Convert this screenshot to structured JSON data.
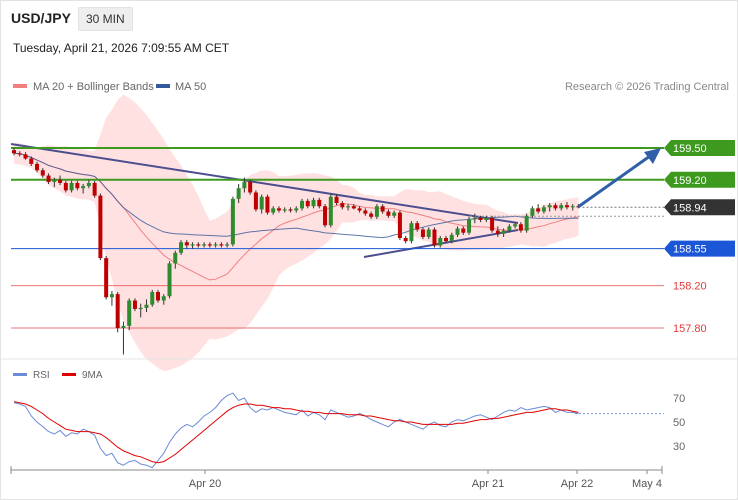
{
  "header": {
    "symbol": "USD/JPY",
    "timeframe": "30 MIN",
    "datetime": "Tuesday, April 21, 2026 7:09:55 AM CET"
  },
  "legend": {
    "ma20": "MA 20 + Bollinger Bands",
    "ma50": "MA 50",
    "rsi": "RSI",
    "rsi_ma": "9MA",
    "credit": "Research © 2026 Trading Central"
  },
  "colors": {
    "bull": "#2e8b2e",
    "bear": "#c00000",
    "ma20": "#f08080",
    "ma50": "#34589a",
    "band": "#ffdcdc",
    "resistance": "#3e9a1e",
    "pivot": "#1a56d6",
    "support": "#e23a3a",
    "current": "#333333",
    "trendline": "#4b4f8f",
    "arrow": "#2f5fa8",
    "rsi": "#6a8bd6",
    "rsi_ma": "#e00000"
  },
  "chart_data": [
    {
      "type": "candlestick",
      "x_labels": [
        "Apr 20",
        "Apr 21",
        "Apr 22",
        "May 4"
      ],
      "levels": [
        {
          "label": "159.50",
          "value": 159.5,
          "kind": "resistance"
        },
        {
          "label": "159.20",
          "value": 159.2,
          "kind": "resistance"
        },
        {
          "label": "158.94",
          "value": 158.94,
          "kind": "current"
        },
        {
          "label": "158.55",
          "value": 158.55,
          "kind": "pivot"
        },
        {
          "label": "158.20",
          "value": 158.2,
          "kind": "support"
        },
        {
          "label": "157.80",
          "value": 157.8,
          "kind": "support"
        }
      ],
      "candles": [
        [
          159.48,
          159.5,
          159.43,
          159.45
        ],
        [
          159.45,
          159.47,
          159.42,
          159.44
        ],
        [
          159.44,
          159.46,
          159.39,
          159.4
        ],
        [
          159.4,
          159.42,
          159.33,
          159.35
        ],
        [
          159.35,
          159.37,
          159.27,
          159.29
        ],
        [
          159.29,
          159.31,
          159.22,
          159.24
        ],
        [
          159.24,
          159.26,
          159.16,
          159.18
        ],
        [
          159.18,
          159.22,
          159.13,
          159.2
        ],
        [
          159.2,
          159.24,
          159.15,
          159.17
        ],
        [
          159.17,
          159.19,
          159.08,
          159.1
        ],
        [
          159.1,
          159.19,
          159.08,
          159.17
        ],
        [
          159.17,
          159.19,
          159.1,
          159.12
        ],
        [
          159.12,
          159.16,
          159.07,
          159.14
        ],
        [
          159.14,
          159.2,
          159.12,
          159.17
        ],
        [
          159.17,
          159.19,
          159.03,
          159.05
        ],
        [
          159.05,
          159.07,
          158.44,
          158.46
        ],
        [
          158.46,
          158.48,
          158.07,
          158.09
        ],
        [
          158.09,
          158.15,
          158.01,
          158.12
        ],
        [
          158.12,
          158.14,
          157.76,
          157.8
        ],
        [
          157.8,
          157.86,
          157.55,
          157.82
        ],
        [
          157.82,
          158.08,
          157.78,
          158.06
        ],
        [
          158.06,
          158.08,
          157.96,
          157.98
        ],
        [
          157.98,
          158.03,
          157.9,
          157.99
        ],
        [
          157.99,
          158.07,
          157.95,
          158.02
        ],
        [
          158.02,
          158.16,
          158.0,
          158.14
        ],
        [
          158.14,
          158.16,
          158.04,
          158.06
        ],
        [
          158.06,
          158.12,
          158.02,
          158.1
        ],
        [
          158.1,
          158.43,
          158.08,
          158.41
        ],
        [
          158.41,
          158.53,
          158.36,
          158.51
        ],
        [
          158.51,
          158.63,
          158.49,
          158.61
        ],
        [
          158.61,
          158.63,
          158.55,
          158.58
        ],
        [
          158.58,
          158.61,
          158.55,
          158.59
        ],
        [
          158.59,
          158.61,
          158.56,
          158.58
        ],
        [
          158.58,
          158.61,
          158.56,
          158.59
        ],
        [
          158.59,
          158.61,
          158.56,
          158.58
        ],
        [
          158.58,
          158.61,
          158.56,
          158.59
        ],
        [
          158.59,
          158.61,
          158.56,
          158.58
        ],
        [
          158.58,
          158.61,
          158.56,
          158.59
        ],
        [
          158.59,
          159.04,
          158.57,
          159.02
        ],
        [
          159.02,
          159.16,
          158.98,
          159.12
        ],
        [
          159.12,
          159.22,
          159.08,
          159.18
        ],
        [
          159.18,
          159.2,
          159.06,
          159.08
        ],
        [
          159.08,
          159.1,
          158.9,
          158.92
        ],
        [
          158.92,
          159.06,
          158.88,
          159.04
        ],
        [
          159.04,
          159.06,
          158.87,
          158.89
        ],
        [
          158.89,
          158.95,
          158.87,
          158.93
        ],
        [
          158.93,
          158.95,
          158.89,
          158.91
        ],
        [
          158.91,
          158.94,
          158.89,
          158.92
        ],
        [
          158.92,
          158.94,
          158.89,
          158.91
        ],
        [
          158.91,
          158.95,
          158.89,
          158.93
        ],
        [
          158.93,
          159.02,
          158.91,
          159.0
        ],
        [
          159.0,
          159.02,
          158.93,
          158.95
        ],
        [
          158.95,
          159.03,
          158.93,
          159.01
        ],
        [
          159.01,
          159.03,
          158.93,
          158.95
        ],
        [
          158.95,
          158.97,
          158.75,
          158.77
        ],
        [
          158.77,
          159.06,
          158.75,
          159.04
        ],
        [
          159.04,
          159.06,
          158.96,
          158.98
        ],
        [
          158.98,
          159.0,
          158.92,
          158.94
        ],
        [
          158.94,
          158.97,
          158.91,
          158.95
        ],
        [
          158.95,
          158.97,
          158.92,
          158.93
        ],
        [
          158.93,
          158.95,
          158.89,
          158.91
        ],
        [
          158.91,
          158.93,
          158.86,
          158.88
        ],
        [
          158.88,
          158.9,
          158.83,
          158.85
        ],
        [
          158.85,
          158.97,
          158.83,
          158.95
        ],
        [
          158.95,
          158.97,
          158.88,
          158.9
        ],
        [
          158.9,
          158.92,
          158.84,
          158.86
        ],
        [
          158.86,
          158.91,
          158.84,
          158.89
        ],
        [
          158.89,
          158.91,
          158.63,
          158.65
        ],
        [
          158.65,
          158.67,
          158.6,
          158.62
        ],
        [
          158.62,
          158.81,
          158.6,
          158.79
        ],
        [
          158.79,
          158.81,
          158.71,
          158.73
        ],
        [
          158.73,
          158.75,
          158.64,
          158.66
        ],
        [
          158.66,
          158.75,
          158.64,
          158.73
        ],
        [
          158.73,
          158.75,
          158.56,
          158.58
        ],
        [
          158.58,
          158.67,
          158.56,
          158.65
        ],
        [
          158.65,
          158.67,
          158.6,
          158.62
        ],
        [
          158.62,
          158.7,
          158.6,
          158.68
        ],
        [
          158.68,
          158.76,
          158.66,
          158.74
        ],
        [
          158.74,
          158.76,
          158.68,
          158.7
        ],
        [
          158.7,
          158.85,
          158.68,
          158.83
        ],
        [
          158.83,
          158.88,
          158.79,
          158.84
        ],
        [
          158.84,
          158.86,
          158.8,
          158.82
        ],
        [
          158.82,
          158.86,
          158.8,
          158.84
        ],
        [
          158.84,
          158.86,
          158.7,
          158.72
        ],
        [
          158.72,
          158.76,
          158.66,
          158.69
        ],
        [
          158.69,
          158.74,
          158.66,
          158.72
        ],
        [
          158.72,
          158.78,
          158.7,
          158.76
        ],
        [
          158.76,
          158.8,
          158.74,
          158.78
        ],
        [
          158.78,
          158.8,
          158.7,
          158.72
        ],
        [
          158.72,
          158.88,
          158.7,
          158.86
        ],
        [
          158.86,
          158.95,
          158.84,
          158.93
        ],
        [
          158.93,
          158.97,
          158.88,
          158.9
        ],
        [
          158.9,
          158.96,
          158.88,
          158.94
        ],
        [
          158.94,
          158.98,
          158.9,
          158.96
        ],
        [
          158.96,
          158.98,
          158.91,
          158.93
        ],
        [
          158.93,
          158.98,
          158.91,
          158.96
        ],
        [
          158.96,
          158.99,
          158.92,
          158.94
        ],
        [
          158.94,
          158.97,
          158.91,
          158.95
        ],
        [
          158.95,
          158.97,
          158.93,
          158.94
        ]
      ]
    },
    {
      "type": "line",
      "name": "RSI",
      "y_ticks": [
        70,
        50,
        30
      ],
      "ylim": [
        10,
        80
      ],
      "x_labels": [
        "Apr 20",
        "Apr 21",
        "Apr 22",
        "May 4"
      ],
      "series": [
        {
          "name": "RSI",
          "values": [
            66,
            65,
            63,
            55,
            50,
            46,
            42,
            40,
            43,
            38,
            41,
            40,
            44,
            42,
            39,
            28,
            22,
            24,
            16,
            14,
            17,
            18,
            15,
            14,
            12,
            18,
            24,
            33,
            40,
            45,
            48,
            46,
            50,
            55,
            58,
            62,
            68,
            72,
            74,
            68,
            70,
            62,
            58,
            61,
            60,
            62,
            60,
            58,
            57,
            56,
            60,
            55,
            58,
            56,
            52,
            60,
            58,
            56,
            54,
            55,
            57,
            55,
            52,
            50,
            48,
            46,
            50,
            52,
            50,
            48,
            46,
            44,
            48,
            50,
            47,
            46,
            50,
            52,
            51,
            53,
            55,
            56,
            54,
            52,
            55,
            58,
            60,
            59,
            62,
            60,
            61,
            62,
            63,
            62,
            58,
            60,
            58,
            58,
            57
          ]
        },
        {
          "name": "9MA",
          "values": [
            67,
            66,
            65,
            63,
            60,
            57,
            53,
            50,
            47,
            44,
            43,
            42,
            42,
            42,
            41,
            40,
            37,
            33,
            29,
            26,
            24,
            22,
            21,
            19,
            17,
            16,
            17,
            20,
            23,
            27,
            31,
            35,
            39,
            43,
            47,
            51,
            55,
            59,
            62,
            64,
            65,
            65,
            64,
            64,
            63,
            62,
            62,
            61,
            61,
            60,
            59,
            59,
            58,
            58,
            57,
            57,
            57,
            57,
            56,
            56,
            56,
            55,
            55,
            54,
            53,
            52,
            51,
            51,
            50,
            50,
            49,
            48,
            48,
            48,
            48,
            48,
            48,
            49,
            49,
            50,
            51,
            52,
            52,
            53,
            53,
            54,
            55,
            56,
            57,
            58,
            58,
            59,
            60,
            61,
            61,
            60,
            60,
            59,
            58
          ]
        }
      ]
    }
  ]
}
